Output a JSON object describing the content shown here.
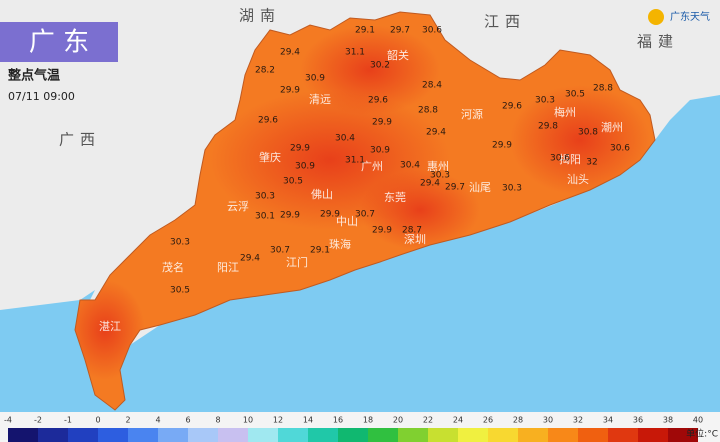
{
  "header": {
    "title": "广 东",
    "subtitle": "整点气温",
    "time": "07/11 09:00",
    "logo": "广东天气"
  },
  "regions": [
    "湖南",
    "江西",
    "福建",
    "广西"
  ],
  "cities": [
    "韶关",
    "清远",
    "河源",
    "梅州",
    "潮州",
    "揭阳",
    "汕头",
    "肇庆",
    "广州",
    "惠州",
    "佛山",
    "东莞",
    "汕尾",
    "云浮",
    "中山",
    "深圳",
    "珠海",
    "江门",
    "茂名",
    "阳江",
    "湛江"
  ],
  "temperatures": [
    29.1,
    29.7,
    30.6,
    29.4,
    28.2,
    31.1,
    30.2,
    30.9,
    29.9,
    28.4,
    29.6,
    28.8,
    29.6,
    30.3,
    30.5,
    28.8,
    29.6,
    30.4,
    29.9,
    29.4,
    29.9,
    29.8,
    30.8,
    30.6,
    29.9,
    31.1,
    30.9,
    30.4,
    30.3,
    30.6,
    32,
    30.9,
    30.3,
    30.5,
    29.4,
    29.7,
    30.3,
    30.1,
    29.9,
    29.9,
    30.7,
    29.9,
    28.7,
    30.3,
    30.7,
    29.1,
    29.4,
    30.5
  ],
  "legend": {
    "ticks": [
      -4,
      -2,
      -1,
      0,
      2,
      4,
      6,
      8,
      10,
      12,
      14,
      16,
      18,
      20,
      22,
      24,
      26,
      28,
      30,
      32,
      34,
      36,
      38,
      40
    ],
    "colors": [
      "#14146e",
      "#1c2a9a",
      "#2140c0",
      "#2d5ee0",
      "#4a84f0",
      "#78aaf5",
      "#a8c8f8",
      "#c8c0f0",
      "#a0e8f0",
      "#50d8d8",
      "#20c8a8",
      "#10b870",
      "#30c040",
      "#80d030",
      "#c8e030",
      "#f0f040",
      "#f8d830",
      "#f8b020",
      "#f88818",
      "#f06010",
      "#e03810",
      "#c81808",
      "#a00808"
    ],
    "unit": "单位:°C"
  }
}
